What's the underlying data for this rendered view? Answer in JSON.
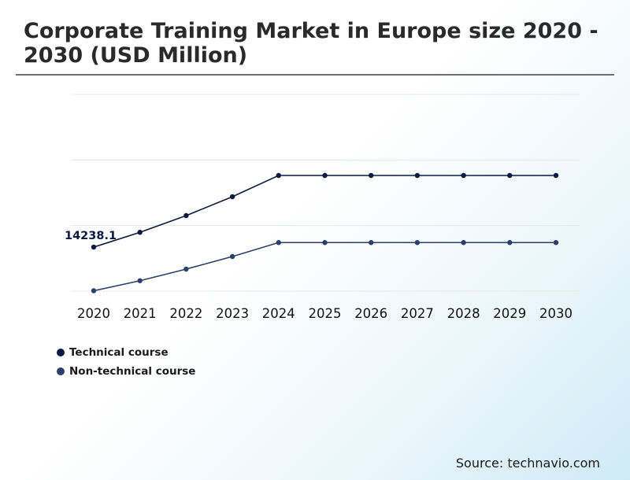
{
  "title": "Corporate Training Market in Europe size 2020 - 2030 (USD Million)",
  "source": "Source: technavio.com",
  "chart_data": {
    "type": "line",
    "x": [
      "2020",
      "2021",
      "2022",
      "2023",
      "2024",
      "2025",
      "2026",
      "2027",
      "2028",
      "2029",
      "2030"
    ],
    "ylim": [
      12000,
      22000
    ],
    "grid": true,
    "legend_position": "bottom-left",
    "series": [
      {
        "name": "Technical course",
        "color": "#0b1a40",
        "values": [
          14238.1,
          14990,
          15840,
          16800,
          17880,
          17880,
          17880,
          17880,
          17880,
          17880,
          17880
        ]
      },
      {
        "name": "Non-technical course",
        "color": "#2c3e6b",
        "values": [
          12020,
          12530,
          13120,
          13760,
          14470,
          14470,
          14470,
          14470,
          14470,
          14470,
          14470
        ]
      }
    ],
    "annotations": [
      {
        "series": 0,
        "index": 0,
        "text": "14238.1"
      }
    ]
  }
}
